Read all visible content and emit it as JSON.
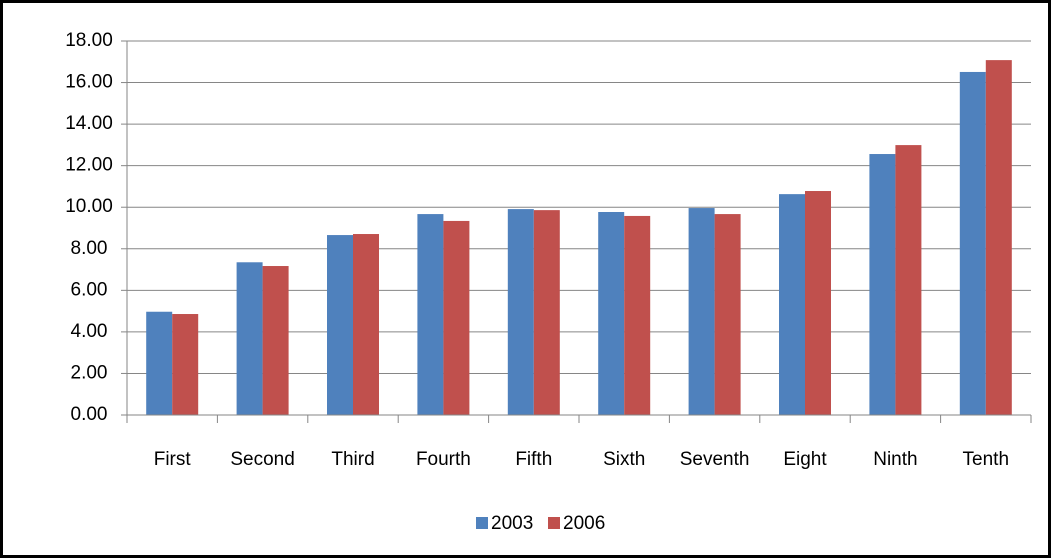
{
  "chart_data": {
    "type": "bar",
    "categories": [
      "First",
      "Second",
      "Third",
      "Fourth",
      "Fifth",
      "Sixth",
      "Seventh",
      "Eight",
      "Ninth",
      "Tenth"
    ],
    "series": [
      {
        "name": "2003",
        "color": "#4f81bd",
        "values": [
          4.97,
          7.35,
          8.66,
          9.67,
          9.91,
          9.77,
          9.96,
          10.63,
          12.56,
          16.51
        ]
      },
      {
        "name": "2006",
        "color": "#c0504d",
        "values": [
          4.86,
          7.17,
          8.71,
          9.34,
          9.86,
          9.58,
          9.67,
          10.78,
          12.99,
          17.08
        ]
      }
    ],
    "ylim": [
      0,
      18
    ],
    "yticks": [
      {
        "value": 0,
        "label": "0.00"
      },
      {
        "value": 2,
        "label": "2.00"
      },
      {
        "value": 4,
        "label": "4.00"
      },
      {
        "value": 6,
        "label": "6.00"
      },
      {
        "value": 8,
        "label": "8.00"
      },
      {
        "value": 10,
        "label": "10.00"
      },
      {
        "value": 12,
        "label": "12.00"
      },
      {
        "value": 14,
        "label": "14.00"
      },
      {
        "value": 16,
        "label": "16.00"
      },
      {
        "value": 18,
        "label": "18.00"
      }
    ],
    "grid": true,
    "legend": "bottom"
  }
}
